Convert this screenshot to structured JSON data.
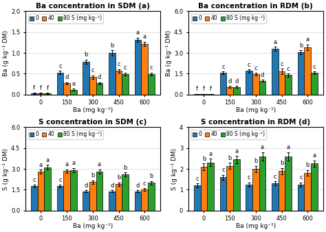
{
  "chart_data": [
    {
      "type": "bar",
      "title": "Ba concentration in SDM (a)",
      "x_label": "Ba (mg kg⁻¹)",
      "y_label": "Ba (g kg⁻¹ DM)",
      "categories": [
        "0",
        "150",
        "300",
        "450",
        "600"
      ],
      "ylim": [
        0.0,
        2.0
      ],
      "yticks": [
        0.0,
        0.5,
        1.0,
        1.5,
        2.0
      ],
      "grid": "y",
      "legend": "upper left",
      "series": [
        {
          "name": "0",
          "values": [
            0.03,
            0.53,
            0.79,
            1.0,
            1.32
          ],
          "errors": [
            0.01,
            0.04,
            0.05,
            0.06,
            0.05
          ],
          "annotations": [
            "f",
            "c",
            "b",
            "b",
            "a"
          ]
        },
        {
          "name": "40",
          "values": [
            0.03,
            0.27,
            0.42,
            0.57,
            1.22
          ],
          "errors": [
            0.01,
            0.03,
            0.04,
            0.04,
            0.05
          ],
          "annotations": [
            "f",
            "d",
            "c",
            "c",
            "a"
          ]
        },
        {
          "name": "80 S (mg kg⁻¹)",
          "values": [
            0.03,
            0.12,
            0.27,
            0.49,
            0.49
          ],
          "errors": [
            0.01,
            0.02,
            0.03,
            0.04,
            0.04
          ],
          "annotations": [
            "f",
            "e",
            "d",
            "c",
            "c"
          ]
        }
      ]
    },
    {
      "type": "bar",
      "title": "Ba concentration in RDM (b)",
      "x_label": "Ba (mg kg⁻¹)",
      "y_label": "Ba (g kg⁻¹ DM)",
      "categories": [
        "0",
        "150",
        "300",
        "450",
        "600"
      ],
      "ylim": [
        0.0,
        6.0
      ],
      "yticks": [
        0.0,
        1.5,
        3.0,
        4.5,
        6.0
      ],
      "grid": "y",
      "legend": "upper left",
      "series": [
        {
          "name": "0",
          "values": [
            0.05,
            1.55,
            1.7,
            3.3,
            3.05
          ],
          "errors": [
            0.01,
            0.1,
            0.12,
            0.15,
            0.15
          ],
          "annotations": [
            "f",
            "c",
            "c",
            "a",
            "b"
          ]
        },
        {
          "name": "40",
          "values": [
            0.05,
            0.55,
            1.45,
            1.65,
            3.4
          ],
          "errors": [
            0.01,
            0.06,
            0.1,
            0.2,
            0.2
          ],
          "annotations": [
            "f",
            "d",
            "c",
            "c",
            "a"
          ]
        },
        {
          "name": "80 S (mg kg⁻¹)",
          "values": [
            0.05,
            0.55,
            1.0,
            1.4,
            1.55
          ],
          "errors": [
            0.01,
            0.06,
            0.08,
            0.12,
            0.1
          ],
          "annotations": [
            "f",
            "d",
            "d",
            "c",
            "c"
          ]
        }
      ]
    },
    {
      "type": "bar",
      "title": "S concentration in SDM (c)",
      "x_label": "Ba (mg kg⁻¹)",
      "y_label": "S (g kg⁻¹ DM)",
      "categories": [
        "0",
        "150",
        "300",
        "450",
        "600"
      ],
      "ylim": [
        0.0,
        6.0
      ],
      "yticks": [
        0.0,
        1.5,
        3.0,
        4.5,
        6.0
      ],
      "grid": "y",
      "legend": "upper left",
      "series": [
        {
          "name": "0",
          "values": [
            1.75,
            1.75,
            1.38,
            1.38,
            1.38
          ],
          "errors": [
            0.1,
            0.1,
            0.08,
            0.08,
            0.08
          ],
          "annotations": [
            "c",
            "c",
            "d",
            "d",
            "d"
          ]
        },
        {
          "name": "40",
          "values": [
            2.8,
            2.85,
            2.05,
            1.9,
            1.52
          ],
          "errors": [
            0.15,
            0.12,
            0.12,
            0.12,
            0.1
          ],
          "annotations": [
            "a",
            "a",
            "b",
            "b",
            "c"
          ]
        },
        {
          "name": "80 S (mg kg⁻¹)",
          "values": [
            3.12,
            2.92,
            2.82,
            2.6,
            2.0
          ],
          "errors": [
            0.18,
            0.15,
            0.15,
            0.14,
            0.12
          ],
          "annotations": [
            "a",
            "a",
            "a",
            "b",
            "b"
          ]
        }
      ]
    },
    {
      "type": "bar",
      "title": "S concentration in RDM (d)",
      "x_label": "Ba (mg kg⁻¹)",
      "y_label": "S (g kg⁻¹ DM)",
      "categories": [
        "0",
        "150",
        "300",
        "450",
        "600"
      ],
      "ylim": [
        0,
        4
      ],
      "yticks": [
        0,
        1,
        2,
        3,
        4
      ],
      "grid": "y",
      "legend": "upper left",
      "series": [
        {
          "name": "0",
          "values": [
            1.2,
            1.6,
            1.25,
            1.3,
            1.25
          ],
          "errors": [
            0.1,
            0.12,
            0.1,
            0.1,
            0.1
          ],
          "annotations": [
            "c",
            "c",
            "c",
            "c",
            "c"
          ]
        },
        {
          "name": "40",
          "values": [
            2.1,
            2.15,
            2.0,
            1.9,
            1.8
          ],
          "errors": [
            0.15,
            0.15,
            0.15,
            0.15,
            0.14
          ],
          "annotations": [
            "b",
            "b",
            "b",
            "b",
            "b"
          ]
        },
        {
          "name": "80 S (mg kg⁻¹)",
          "values": [
            2.3,
            2.45,
            2.6,
            2.6,
            2.25
          ],
          "errors": [
            0.18,
            0.18,
            0.2,
            0.2,
            0.16
          ],
          "annotations": [
            "a",
            "a",
            "a",
            "a",
            "a"
          ]
        }
      ]
    }
  ]
}
